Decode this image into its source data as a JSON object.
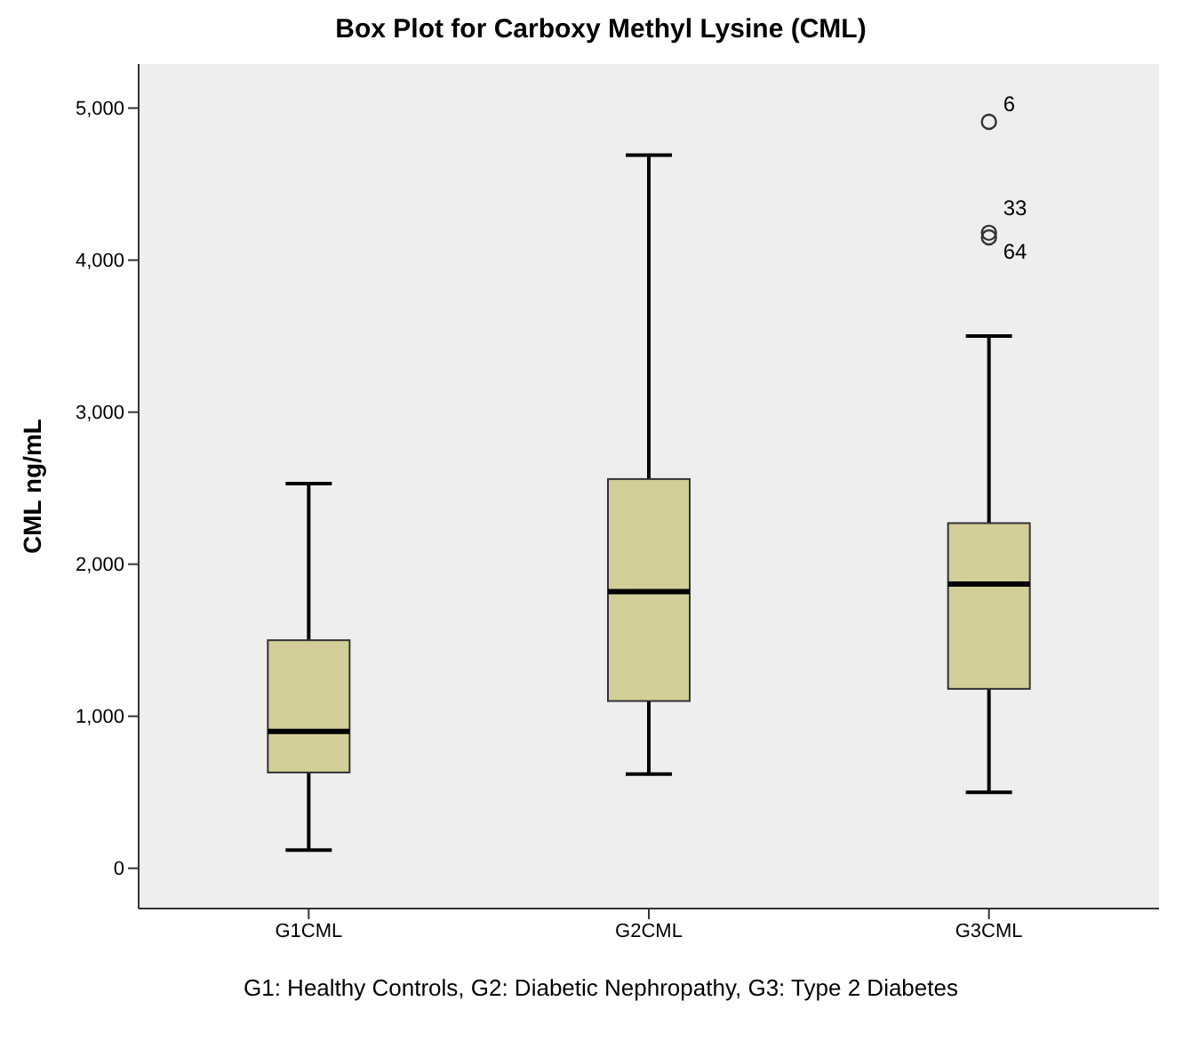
{
  "chart_data": {
    "type": "box",
    "title": "Box Plot for Carboxy Methyl Lysine (CML)",
    "ylabel": "CML ng/mL",
    "categories": [
      "G1CML",
      "G2CML",
      "G3CML"
    ],
    "color": "#d3ce97",
    "boxes": [
      {
        "low": 120,
        "q1": 630,
        "median": 900,
        "q3": 1500,
        "high": 2530
      },
      {
        "low": 620,
        "q1": 1100,
        "median": 1820,
        "q3": 2560,
        "high": 4690
      },
      {
        "low": 500,
        "q1": 1180,
        "median": 1870,
        "q3": 2270,
        "high": 3500,
        "outliers": [
          4910,
          4180,
          4150
        ]
      }
    ],
    "ylim": [
      -265,
      5290
    ],
    "yticks": [
      {
        "value": 0,
        "label": "0"
      },
      {
        "value": 1000,
        "label": "1,000"
      },
      {
        "value": 2000,
        "label": "2,000"
      },
      {
        "value": 3000,
        "label": "3,000"
      },
      {
        "value": 4000,
        "label": "4,000"
      },
      {
        "value": 5000,
        "label": "5,000"
      }
    ],
    "grid": false,
    "annotations": [
      "6",
      "33",
      "64",
      "G1: Healthy Controls, G2: Diabetic Nephropathy, G3: Type 2 Diabetes"
    ]
  }
}
